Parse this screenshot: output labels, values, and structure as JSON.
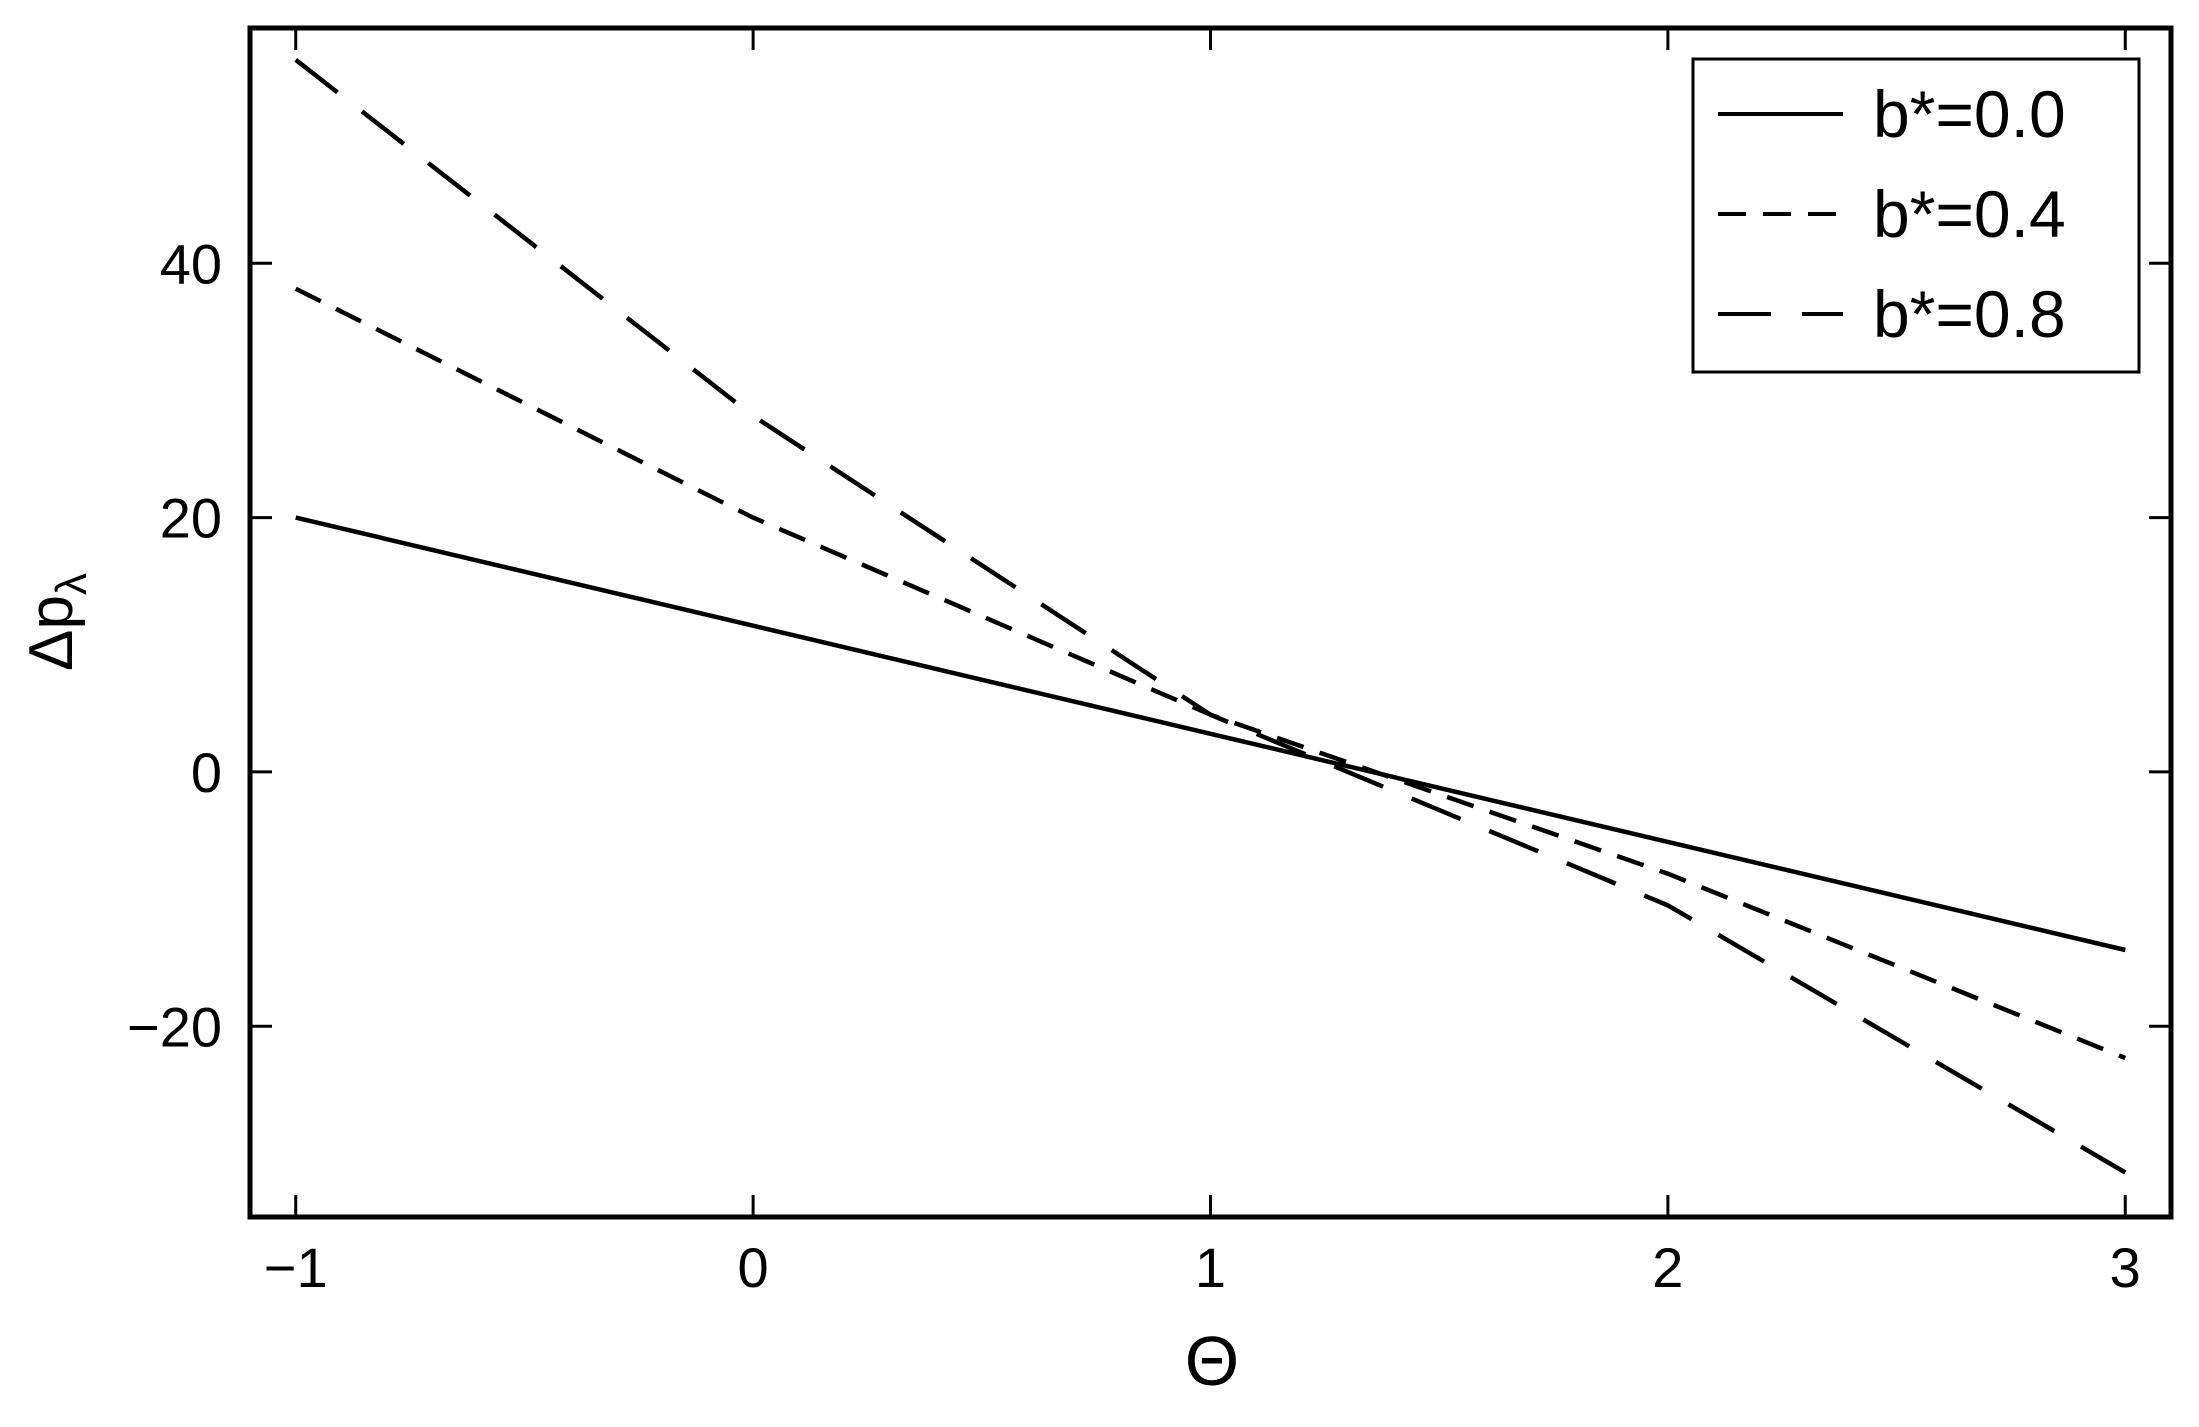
{
  "chart_data": {
    "type": "line",
    "xlabel": "Θ",
    "ylabel": "Δp",
    "ylabel_sub": "λ",
    "x": [
      -1,
      0,
      1,
      2,
      3
    ],
    "series": [
      {
        "name": "b*=0.0",
        "color": "#000000",
        "line_style": "solid",
        "values": [
          20,
          11.5,
          3,
          -5.5,
          -14
        ]
      },
      {
        "name": "b*=0.4",
        "color": "#000000",
        "line_style": "dashed",
        "values": [
          38,
          20,
          4.5,
          -8,
          -22.5
        ]
      },
      {
        "name": "b*=0.8",
        "color": "#000000",
        "line_style": "long-dashed",
        "values": [
          56,
          28,
          4.5,
          -10.5,
          -31.5
        ]
      }
    ],
    "xlim": [
      -1.1,
      3.1
    ],
    "ylim": [
      -35,
      58.5
    ],
    "xticks": [
      {
        "value": -1,
        "label": "−1"
      },
      0,
      1,
      2,
      3
    ],
    "yticks": [
      {
        "value": -20,
        "label": "−20"
      },
      0,
      20,
      40
    ],
    "grid": false,
    "legend": "upper-right"
  }
}
